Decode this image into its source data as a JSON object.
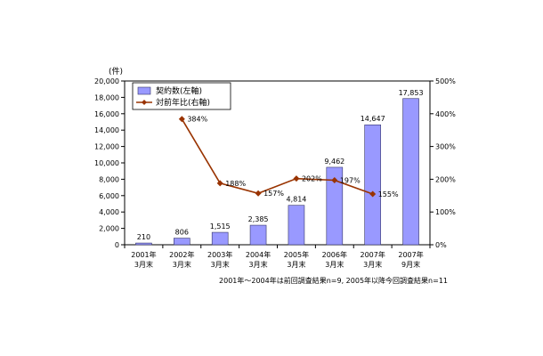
{
  "chart_data": {
    "type": "bar",
    "categories": [
      [
        "2001年",
        "3月末"
      ],
      [
        "2002年",
        "3月末"
      ],
      [
        "2003年",
        "3月末"
      ],
      [
        "2004年",
        "3月末"
      ],
      [
        "2005年",
        "3月末"
      ],
      [
        "2006年",
        "3月末"
      ],
      [
        "2007年",
        "3月末"
      ],
      [
        "2007年",
        "9月末"
      ]
    ],
    "series": [
      {
        "name": "契約数(左軸)",
        "type": "bar",
        "axis": "left",
        "values": [
          210,
          806,
          1515,
          2385,
          4814,
          9462,
          14647,
          17853
        ],
        "labels": [
          "210",
          "806",
          "1,515",
          "2,385",
          "4,814",
          "9,462",
          "14,647",
          "17,853"
        ],
        "color": "#9999ff"
      },
      {
        "name": "対前年比(右軸)",
        "type": "line",
        "axis": "right",
        "values": [
          null,
          384,
          188,
          157,
          202,
          197,
          155,
          null
        ],
        "labels": [
          "",
          "384%",
          "188%",
          "157%",
          "202%",
          "197%",
          "155%",
          ""
        ],
        "color": "#993300"
      }
    ],
    "y_left": {
      "unit_label": "(件)",
      "ylim": [
        0,
        20000
      ],
      "ticks": [
        0,
        2000,
        4000,
        6000,
        8000,
        10000,
        12000,
        14000,
        16000,
        18000,
        20000
      ],
      "tick_labels": [
        "0",
        "2,000",
        "4,000",
        "6,000",
        "8,000",
        "10,000",
        "12,000",
        "14,000",
        "16,000",
        "18,000",
        "20,000"
      ]
    },
    "y_right": {
      "ylim": [
        0,
        500
      ],
      "ticks": [
        0,
        100,
        200,
        300,
        400,
        500
      ],
      "tick_labels": [
        "0%",
        "100%",
        "200%",
        "300%",
        "400%",
        "500%"
      ]
    },
    "legend_position": "top-left",
    "note": "2001年～2004年は前回調査結果n=9, 2005年以降今回調査結果n=11"
  }
}
